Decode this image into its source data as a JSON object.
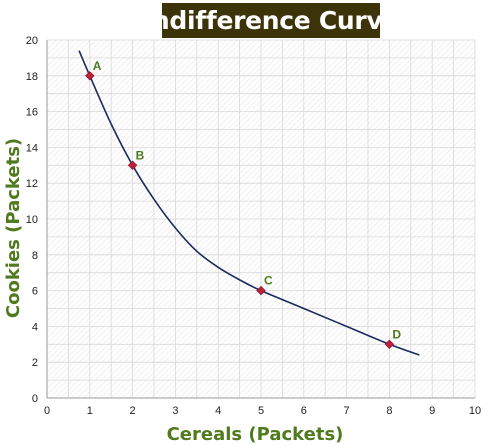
{
  "chart_data": {
    "type": "line",
    "title": "Indifference Curve",
    "xlabel": "Cereals (Packets)",
    "ylabel": "Cookies (Packets)",
    "xlim": [
      0,
      10
    ],
    "ylim": [
      0,
      20
    ],
    "x_ticks": [
      "0",
      "1",
      "2",
      "3",
      "4",
      "5",
      "6",
      "7",
      "8",
      "9",
      "10"
    ],
    "y_ticks": [
      "0",
      "2",
      "4",
      "6",
      "8",
      "10",
      "12",
      "14",
      "16",
      "18",
      "20"
    ],
    "grid": true,
    "curve": {
      "x": [
        0.75,
        1,
        1.5,
        2,
        2.5,
        3,
        3.5,
        4,
        4.5,
        5,
        6,
        7,
        8,
        8.7
      ],
      "y": [
        19.4,
        18,
        15.3,
        13,
        11.1,
        9.5,
        8.2,
        7.3,
        6.6,
        6,
        5,
        4,
        3,
        2.4
      ]
    },
    "points": [
      {
        "label": "A",
        "x": 1,
        "y": 18
      },
      {
        "label": "B",
        "x": 2,
        "y": 13
      },
      {
        "label": "C",
        "x": 5,
        "y": 6
      },
      {
        "label": "D",
        "x": 8,
        "y": 3
      }
    ],
    "colors": {
      "title_bg": "#3d3309",
      "title_text": "#ffffff",
      "curve": "#1c2a5e",
      "point": "#c0203a",
      "point_label": "#4f7a1e",
      "axis_label": "#4f7a1e",
      "grid": "#d8d8d8"
    }
  }
}
